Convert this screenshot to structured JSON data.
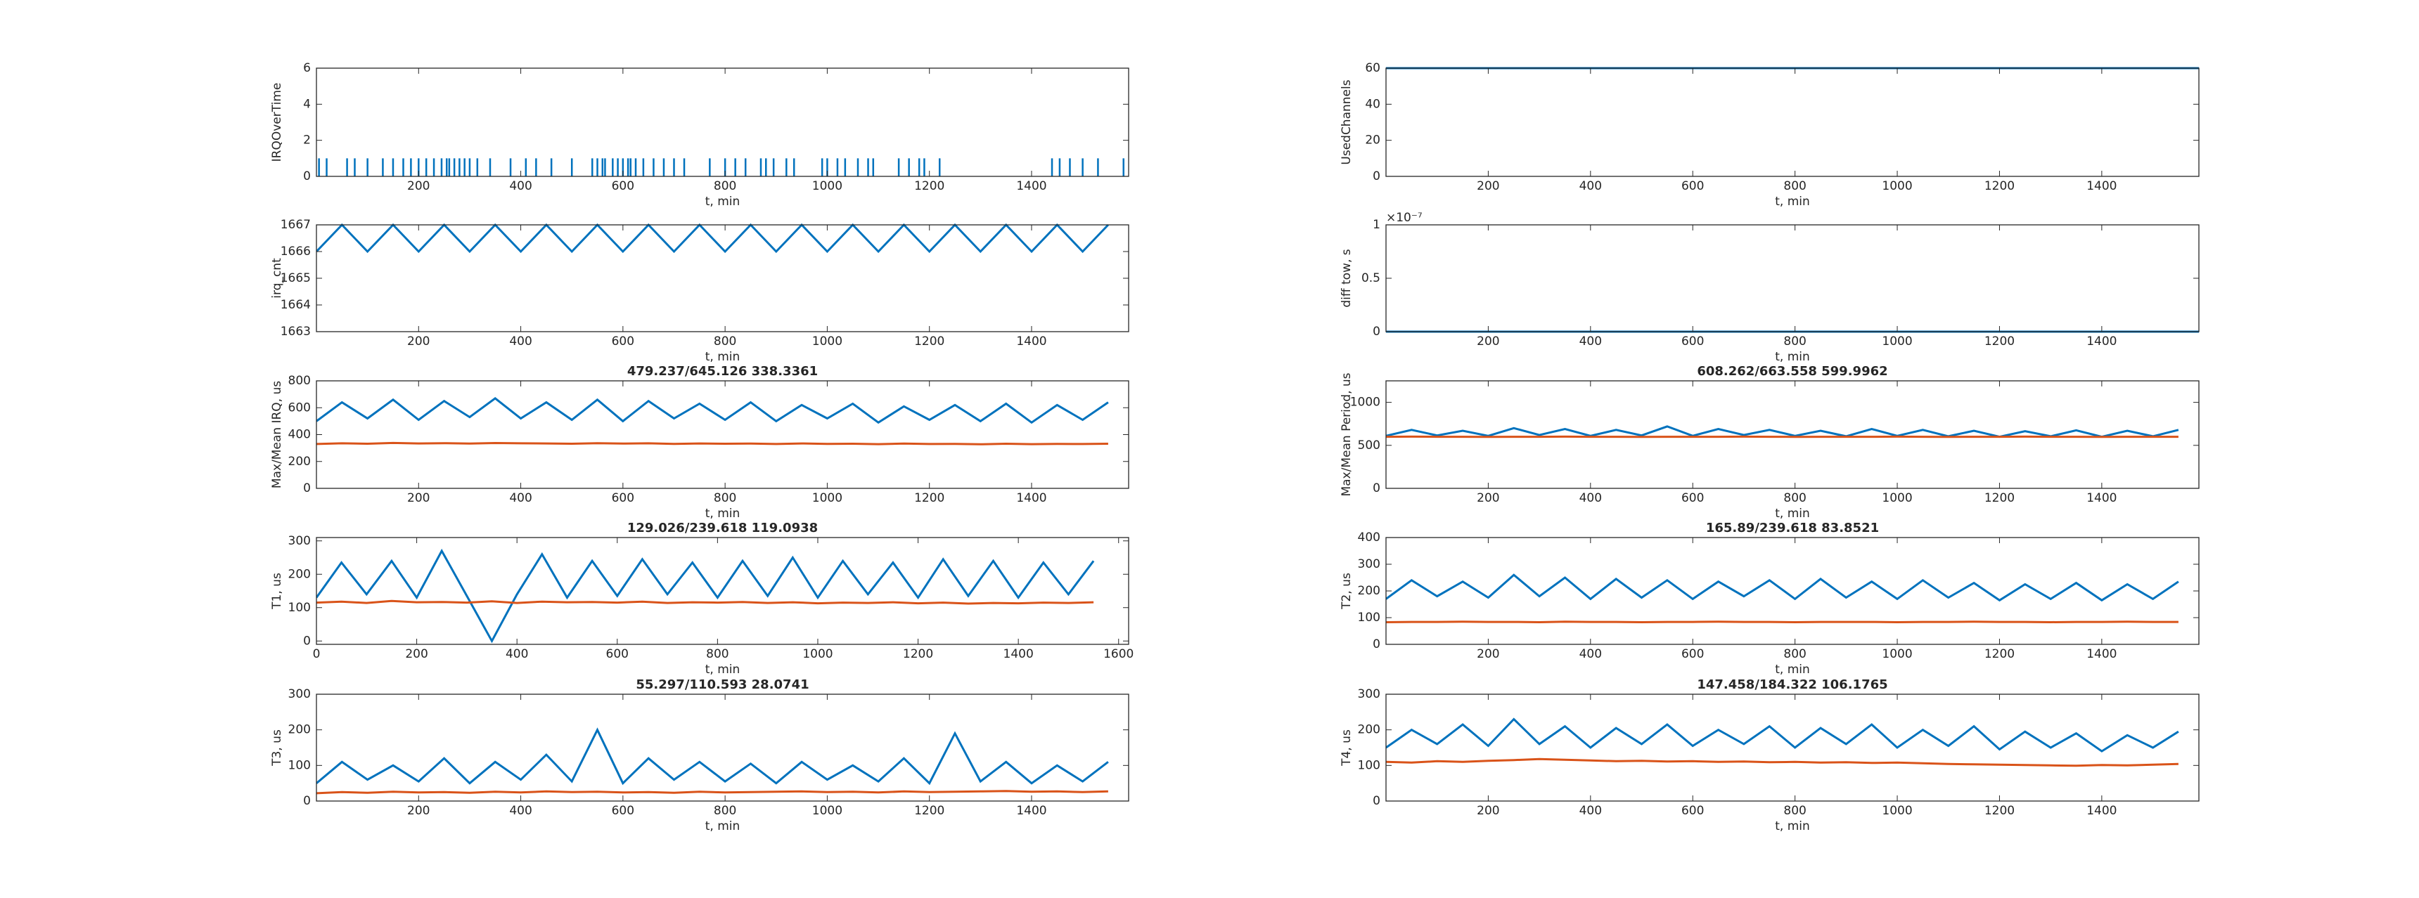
{
  "chart_data": [
    {
      "type": "stem",
      "ylabel": "IRQOverTime",
      "xlabel": "t, min",
      "xlim": [
        0,
        1590
      ],
      "ylim": [
        0,
        6
      ],
      "xticks": [
        200,
        400,
        600,
        800,
        1000,
        1200,
        1400
      ],
      "yticks": [
        0,
        2,
        4,
        6
      ],
      "series": [
        {
          "name": "IRQOverTime",
          "color": "#0072BD",
          "x": [
            5,
            20,
            60,
            75,
            100,
            130,
            150,
            170,
            185,
            200,
            215,
            230,
            245,
            255,
            260,
            270,
            280,
            290,
            300,
            315,
            340,
            380,
            410,
            430,
            460,
            500,
            540,
            550,
            560,
            565,
            580,
            590,
            600,
            610,
            615,
            625,
            640,
            660,
            680,
            700,
            720,
            770,
            800,
            820,
            840,
            870,
            880,
            895,
            920,
            935,
            990,
            1000,
            1020,
            1035,
            1060,
            1080,
            1090,
            1140,
            1160,
            1180,
            1190,
            1220,
            1440,
            1455,
            1475,
            1500,
            1530,
            1580
          ],
          "values": [
            1,
            1,
            1,
            1,
            1,
            1,
            1,
            1,
            1,
            1,
            1,
            1,
            1,
            1,
            1,
            1,
            1,
            1,
            1,
            1,
            1,
            1,
            1,
            1,
            1,
            1,
            1,
            1,
            1,
            1,
            1,
            1,
            1,
            1,
            1,
            1,
            1,
            1,
            1,
            1,
            1,
            1,
            1,
            1,
            1,
            1,
            1,
            1,
            1,
            1,
            1,
            1,
            1,
            1,
            1,
            1,
            1,
            1,
            1,
            1,
            1,
            1,
            1,
            1,
            1,
            1,
            1,
            1
          ]
        }
      ]
    },
    {
      "type": "line",
      "ylabel": "UsedChannels",
      "xlabel": "t, min",
      "xlim": [
        0,
        1590
      ],
      "ylim": [
        0,
        60
      ],
      "xticks": [
        200,
        400,
        600,
        800,
        1000,
        1200,
        1400
      ],
      "yticks": [
        0,
        20,
        40,
        60
      ],
      "x": [
        0,
        1590
      ],
      "series": [
        {
          "name": "UsedChannels",
          "color": "#0072BD",
          "values": [
            60,
            60
          ]
        }
      ]
    },
    {
      "type": "line",
      "ylabel": "irq_cnt",
      "xlabel": "t, min",
      "xlim": [
        0,
        1590
      ],
      "ylim": [
        1663,
        1667
      ],
      "xticks": [
        200,
        400,
        600,
        800,
        1000,
        1200,
        1400
      ],
      "yticks": [
        1663,
        1664,
        1665,
        1666,
        1667
      ],
      "x": [
        0,
        50,
        100,
        150,
        200,
        250,
        300,
        350,
        400,
        450,
        500,
        550,
        600,
        650,
        700,
        750,
        800,
        850,
        900,
        950,
        1000,
        1050,
        1100,
        1150,
        1200,
        1250,
        1300,
        1350,
        1400,
        1450,
        1500,
        1550
      ],
      "series": [
        {
          "name": "irq_cnt",
          "color": "#0072BD",
          "values": [
            1666,
            1667,
            1666,
            1667,
            1666,
            1667,
            1666,
            1667,
            1666,
            1667,
            1666,
            1667,
            1666,
            1667,
            1666,
            1667,
            1666,
            1667,
            1666,
            1667,
            1666,
            1667,
            1666,
            1667,
            1666,
            1667,
            1666,
            1667,
            1666,
            1667,
            1666,
            1667
          ]
        }
      ]
    },
    {
      "type": "line",
      "ylabel": "diff tow, s",
      "y_exponent": "×10⁻⁷",
      "xlabel": "t, min",
      "xlim": [
        0,
        1590
      ],
      "ylim": [
        0,
        1e-07
      ],
      "xticks": [
        200,
        400,
        600,
        800,
        1000,
        1200,
        1400
      ],
      "yticks": [
        0,
        {
          "value": 5e-08,
          "label": "0.5"
        },
        {
          "value": 1e-07,
          "label": "1"
        }
      ],
      "x": [
        0,
        1590
      ],
      "series": [
        {
          "name": "diff tow",
          "color": "#0072BD",
          "values": [
            0,
            0
          ]
        }
      ]
    },
    {
      "type": "line",
      "title": "479.237/645.126  338.3361",
      "ylabel": "Max/Mean IRQ, us",
      "xlabel": "t, min",
      "xlim": [
        0,
        1590
      ],
      "ylim": [
        0,
        800
      ],
      "xticks": [
        200,
        400,
        600,
        800,
        1000,
        1200,
        1400
      ],
      "yticks": [
        0,
        200,
        400,
        600,
        800
      ],
      "x": [
        0,
        50,
        100,
        150,
        200,
        250,
        300,
        350,
        400,
        450,
        500,
        550,
        600,
        650,
        700,
        750,
        800,
        850,
        900,
        950,
        1000,
        1050,
        1100,
        1150,
        1200,
        1250,
        1300,
        1350,
        1400,
        1450,
        1500,
        1550
      ],
      "series": [
        {
          "name": "Max",
          "color": "#0072BD",
          "values": [
            500,
            640,
            520,
            660,
            510,
            650,
            530,
            670,
            520,
            640,
            510,
            660,
            500,
            650,
            520,
            630,
            510,
            640,
            500,
            620,
            520,
            630,
            490,
            610,
            510,
            620,
            500,
            630,
            490,
            620,
            510,
            640
          ]
        },
        {
          "name": "Mean",
          "color": "#D95319",
          "values": [
            330,
            335,
            332,
            338,
            334,
            336,
            333,
            337,
            335,
            334,
            332,
            336,
            333,
            335,
            331,
            334,
            332,
            333,
            330,
            334,
            331,
            332,
            329,
            333,
            330,
            331,
            328,
            332,
            329,
            331,
            330,
            332
          ]
        }
      ]
    },
    {
      "type": "line",
      "title": "608.262/663.558  599.9962",
      "ylabel": "Max/Mean Period, us",
      "xlabel": "t, min",
      "xlim": [
        0,
        1590
      ],
      "ylim": [
        0,
        1250
      ],
      "xticks": [
        200,
        400,
        600,
        800,
        1000,
        1200,
        1400
      ],
      "yticks": [
        0,
        500,
        1000
      ],
      "x": [
        0,
        50,
        100,
        150,
        200,
        250,
        300,
        350,
        400,
        450,
        500,
        550,
        600,
        650,
        700,
        750,
        800,
        850,
        900,
        950,
        1000,
        1050,
        1100,
        1150,
        1200,
        1250,
        1300,
        1350,
        1400,
        1450,
        1500,
        1550
      ],
      "series": [
        {
          "name": "Max",
          "color": "#0072BD",
          "values": [
            610,
            680,
            615,
            670,
            610,
            700,
            620,
            690,
            610,
            680,
            615,
            720,
            610,
            690,
            620,
            680,
            610,
            670,
            605,
            690,
            610,
            680,
            605,
            670,
            600,
            665,
            605,
            675,
            600,
            670,
            605,
            680
          ]
        },
        {
          "name": "Mean",
          "color": "#D95319",
          "values": [
            600,
            601,
            600,
            600,
            599,
            600,
            600,
            601,
            600,
            600,
            599,
            600,
            600,
            600,
            601,
            600,
            599,
            600,
            600,
            600,
            601,
            600,
            599,
            600,
            600,
            601,
            600,
            600,
            599,
            600,
            600,
            600
          ]
        }
      ]
    },
    {
      "type": "line",
      "title": "129.026/239.618  119.0938",
      "ylabel": "T1, us",
      "xlabel": "t, min",
      "xlim": [
        0,
        1620
      ],
      "ylim": [
        -10,
        310
      ],
      "xticks": [
        0,
        200,
        400,
        600,
        800,
        1000,
        1200,
        1400,
        1600
      ],
      "yticks": [
        0,
        100,
        200,
        300
      ],
      "x": [
        0,
        50,
        100,
        150,
        200,
        250,
        300,
        350,
        400,
        450,
        500,
        550,
        600,
        650,
        700,
        750,
        800,
        850,
        900,
        950,
        1000,
        1050,
        1100,
        1150,
        1200,
        1250,
        1300,
        1350,
        1400,
        1450,
        1500,
        1550
      ],
      "series": [
        {
          "name": "Max",
          "color": "#0072BD",
          "values": [
            130,
            235,
            140,
            240,
            130,
            270,
            135,
            0,
            140,
            260,
            130,
            240,
            135,
            245,
            140,
            235,
            130,
            240,
            135,
            250,
            130,
            240,
            140,
            235,
            130,
            245,
            135,
            240,
            130,
            235,
            140,
            240
          ]
        },
        {
          "name": "Mean",
          "color": "#D95319",
          "values": [
            115,
            118,
            114,
            120,
            116,
            117,
            115,
            119,
            114,
            118,
            116,
            117,
            115,
            118,
            114,
            116,
            115,
            117,
            114,
            116,
            113,
            115,
            114,
            116,
            113,
            115,
            112,
            114,
            113,
            115,
            114,
            116
          ]
        }
      ]
    },
    {
      "type": "line",
      "title": "165.89/239.618  83.8521",
      "ylabel": "T2, us",
      "xlabel": "t, min",
      "xlim": [
        0,
        1590
      ],
      "ylim": [
        0,
        400
      ],
      "xticks": [
        200,
        400,
        600,
        800,
        1000,
        1200,
        1400
      ],
      "yticks": [
        0,
        100,
        200,
        300,
        400
      ],
      "x": [
        0,
        50,
        100,
        150,
        200,
        250,
        300,
        350,
        400,
        450,
        500,
        550,
        600,
        650,
        700,
        750,
        800,
        850,
        900,
        950,
        1000,
        1050,
        1100,
        1150,
        1200,
        1250,
        1300,
        1350,
        1400,
        1450,
        1500,
        1550
      ],
      "series": [
        {
          "name": "Max",
          "color": "#0072BD",
          "values": [
            170,
            240,
            180,
            235,
            175,
            260,
            180,
            250,
            170,
            245,
            175,
            240,
            170,
            235,
            180,
            240,
            170,
            245,
            175,
            235,
            170,
            240,
            175,
            230,
            165,
            225,
            170,
            230,
            165,
            225,
            170,
            235
          ]
        },
        {
          "name": "Mean",
          "color": "#D95319",
          "values": [
            83,
            84,
            84,
            85,
            84,
            84,
            83,
            85,
            84,
            84,
            83,
            84,
            84,
            85,
            84,
            84,
            83,
            84,
            84,
            84,
            83,
            84,
            84,
            85,
            84,
            84,
            83,
            84,
            84,
            85,
            84,
            84
          ]
        }
      ]
    },
    {
      "type": "line",
      "title": "55.297/110.593  28.0741",
      "ylabel": "T3, us",
      "xlabel": "t, min",
      "xlim": [
        0,
        1590
      ],
      "ylim": [
        0,
        300
      ],
      "xticks": [
        200,
        400,
        600,
        800,
        1000,
        1200,
        1400
      ],
      "yticks": [
        0,
        100,
        200,
        300
      ],
      "x": [
        0,
        50,
        100,
        150,
        200,
        250,
        300,
        350,
        400,
        450,
        500,
        550,
        600,
        650,
        700,
        750,
        800,
        850,
        900,
        950,
        1000,
        1050,
        1100,
        1150,
        1200,
        1250,
        1300,
        1350,
        1400,
        1450,
        1500,
        1550
      ],
      "series": [
        {
          "name": "Max",
          "color": "#0072BD",
          "values": [
            50,
            110,
            60,
            100,
            55,
            120,
            50,
            110,
            60,
            130,
            55,
            200,
            50,
            120,
            60,
            110,
            55,
            105,
            50,
            110,
            60,
            100,
            55,
            120,
            50,
            190,
            55,
            110,
            50,
            100,
            55,
            110
          ]
        },
        {
          "name": "Mean",
          "color": "#D95319",
          "values": [
            22,
            25,
            23,
            26,
            24,
            25,
            23,
            26,
            24,
            27,
            25,
            26,
            24,
            25,
            23,
            26,
            24,
            25,
            26,
            27,
            25,
            26,
            24,
            27,
            25,
            26,
            27,
            28,
            26,
            27,
            25,
            27
          ]
        }
      ]
    },
    {
      "type": "line",
      "title": "147.458/184.322  106.1765",
      "ylabel": "T4, us",
      "xlabel": "t, min",
      "xlim": [
        0,
        1590
      ],
      "ylim": [
        0,
        300
      ],
      "xticks": [
        200,
        400,
        600,
        800,
        1000,
        1200,
        1400
      ],
      "yticks": [
        0,
        100,
        200,
        300
      ],
      "x": [
        0,
        50,
        100,
        150,
        200,
        250,
        300,
        350,
        400,
        450,
        500,
        550,
        600,
        650,
        700,
        750,
        800,
        850,
        900,
        950,
        1000,
        1050,
        1100,
        1150,
        1200,
        1250,
        1300,
        1350,
        1400,
        1450,
        1500,
        1550
      ],
      "series": [
        {
          "name": "Max",
          "color": "#0072BD",
          "values": [
            150,
            200,
            160,
            215,
            155,
            230,
            160,
            210,
            150,
            205,
            160,
            215,
            155,
            200,
            160,
            210,
            150,
            205,
            160,
            215,
            150,
            200,
            155,
            210,
            145,
            195,
            150,
            190,
            140,
            185,
            150,
            195
          ]
        },
        {
          "name": "Mean",
          "color": "#D95319",
          "values": [
            110,
            108,
            112,
            110,
            113,
            115,
            118,
            116,
            114,
            112,
            113,
            111,
            112,
            110,
            111,
            109,
            110,
            108,
            109,
            107,
            108,
            106,
            104,
            103,
            102,
            101,
            100,
            99,
            101,
            100,
            102,
            104
          ]
        }
      ]
    }
  ]
}
